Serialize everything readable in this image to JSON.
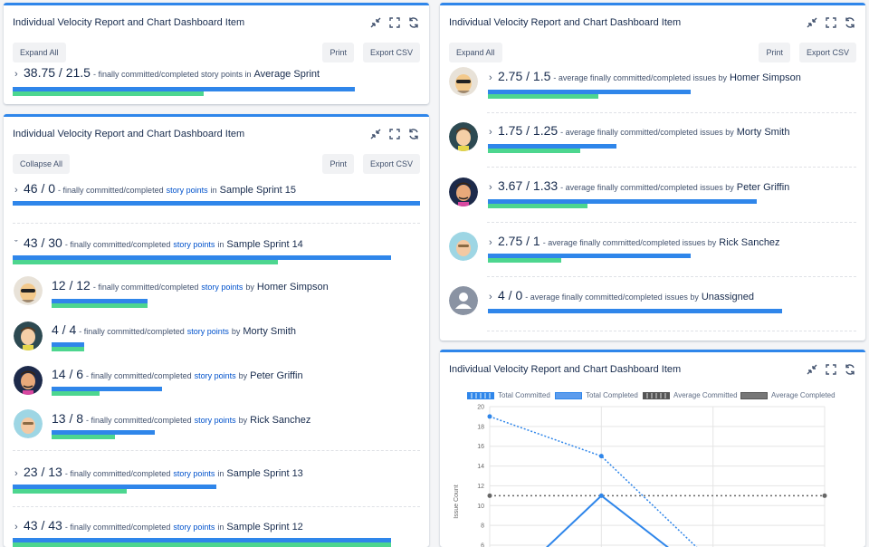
{
  "colors": {
    "accent": "#2f86ea",
    "committed": "#2f86ea",
    "completed": "#4dd68f"
  },
  "card1": {
    "title": "Individual Velocity Report and Chart Dashboard Item",
    "expand_label": "Expand All",
    "print_label": "Print",
    "export_label": "Export CSV",
    "row": {
      "value": "38.75 / 21.5",
      "text": "- finally committed/completed story points in",
      "name": "Average Sprint"
    }
  },
  "card2": {
    "title": "Individual Velocity Report and Chart Dashboard Item",
    "collapse_label": "Collapse All",
    "print_label": "Print",
    "export_label": "Export CSV",
    "text_pre": "- finally committed/completed",
    "link": "story points",
    "sprints": [
      {
        "value": "46 / 0",
        "in": "in",
        "name": "Sample Sprint 15",
        "committed": 46,
        "completed": 0
      },
      {
        "value": "43 / 30",
        "in": "in",
        "name": "Sample Sprint 14",
        "committed": 43,
        "completed": 30
      },
      {
        "value": "23 / 13",
        "in": "in",
        "name": "Sample Sprint 13",
        "committed": 23,
        "completed": 13
      },
      {
        "value": "43 / 43",
        "in": "in",
        "name": "Sample Sprint 12",
        "committed": 43,
        "completed": 43
      }
    ],
    "members": [
      {
        "value": "12 / 12",
        "by": "by",
        "name": "Homer Simpson",
        "committed": 12,
        "completed": 12
      },
      {
        "value": "4 / 4",
        "by": "by",
        "name": "Morty Smith",
        "committed": 4,
        "completed": 4
      },
      {
        "value": "14 / 6",
        "by": "by",
        "name": "Peter Griffin",
        "committed": 14,
        "completed": 6
      },
      {
        "value": "13 / 8",
        "by": "by",
        "name": "Rick Sanchez",
        "committed": 13,
        "completed": 8
      }
    ]
  },
  "card3": {
    "title": "Individual Velocity Report and Chart Dashboard Item",
    "expand_label": "Expand All",
    "print_label": "Print",
    "export_label": "Export CSV",
    "text": "- average finally committed/completed issues by",
    "rows": [
      {
        "value": "2.75 / 1.5",
        "name": "Homer Simpson",
        "committed": 2.75,
        "completed": 1.5
      },
      {
        "value": "1.75 / 1.25",
        "name": "Morty Smith",
        "committed": 1.75,
        "completed": 1.25
      },
      {
        "value": "3.67 / 1.33",
        "name": "Peter Griffin",
        "committed": 3.67,
        "completed": 1.33
      },
      {
        "value": "2.75 / 1",
        "name": "Rick Sanchez",
        "committed": 2.75,
        "completed": 1
      },
      {
        "value": "4 / 0",
        "name": "Unassigned",
        "committed": 4,
        "completed": 0
      }
    ]
  },
  "card4": {
    "title": "Individual Velocity Report and Chart Dashboard Item"
  },
  "chart_data": {
    "type": "line",
    "ylabel": "Issue Count",
    "ylim": [
      6,
      20
    ],
    "yticks": [
      20,
      18,
      16,
      14,
      12,
      10,
      8,
      6
    ],
    "x_count": 4,
    "series": [
      {
        "name": "Total Committed",
        "style": "dotted",
        "values": [
          19,
          15,
          null,
          null
        ]
      },
      {
        "name": "Total Completed",
        "style": "solid",
        "values": [
          null,
          11,
          null,
          null
        ]
      },
      {
        "name": "Average Committed",
        "style": "dotted-gray",
        "values": [
          11,
          11,
          11,
          11
        ]
      },
      {
        "name": "Average Completed",
        "style": "solid-gray",
        "values": [
          null,
          null,
          null,
          null
        ]
      }
    ]
  }
}
